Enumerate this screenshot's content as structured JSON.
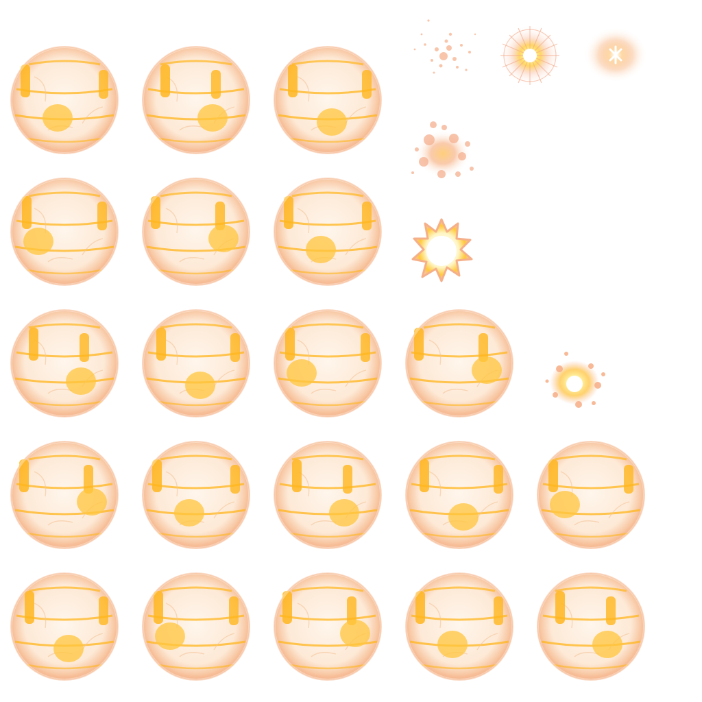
{
  "sheet": {
    "type": "sprite-sheet",
    "background": "#ffffff",
    "palette": {
      "orb_core": "#fff6ec",
      "orb_rim": "#f29a63",
      "band": "#ffb61e",
      "patch": "#ffc53d",
      "glow": "#fff3a0",
      "spark_hot": "#ffffff",
      "spark_warm": "#ffd24a",
      "ember": "#f7b592"
    }
  },
  "orb_rows": [
    {
      "row": 1,
      "frame_count": 3
    },
    {
      "row": 2,
      "frame_count": 3
    },
    {
      "row": 3,
      "frame_count": 4
    },
    {
      "row": 4,
      "frame_count": 5
    },
    {
      "row": 5,
      "frame_count": 5
    }
  ],
  "effect_sprites": [
    {
      "name": "ember-dust-sprite",
      "kind": "dust"
    },
    {
      "name": "star-flash-sprite",
      "kind": "starburst"
    },
    {
      "name": "lens-flare-sprite",
      "kind": "flare"
    },
    {
      "name": "ember-cloud-sprite",
      "kind": "cloud"
    },
    {
      "name": "white-burst-sprite",
      "kind": "burst"
    },
    {
      "name": "spark-burst-sprite",
      "kind": "spark"
    }
  ]
}
